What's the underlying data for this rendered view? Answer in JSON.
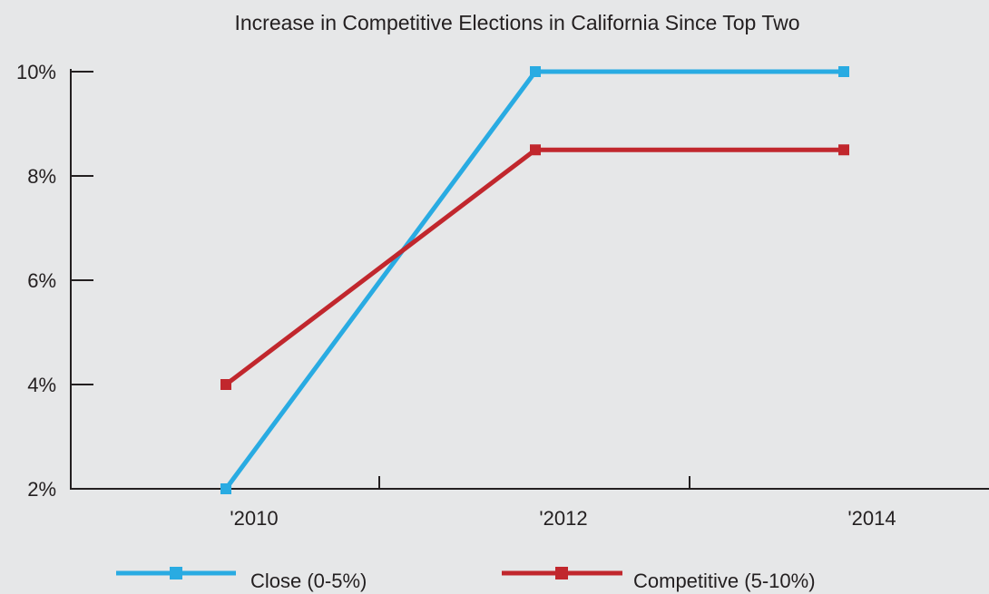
{
  "chart_data": {
    "type": "line",
    "title": "Increase in Competitive Elections in California Since Top Two",
    "xlabel": "",
    "ylabel": "",
    "x": [
      "'2010",
      "'2012",
      "'2014"
    ],
    "yticks": [
      "2%",
      "4%",
      "6%",
      "8%",
      "10%"
    ],
    "ylim": [
      2,
      10
    ],
    "grid": false,
    "legend_position": "bottom",
    "series": [
      {
        "name": "Close (0-5%)",
        "color": "#29abe2",
        "values": [
          2,
          10,
          10
        ]
      },
      {
        "name": "Competitive (5-10%)",
        "color": "#c1272d",
        "values": [
          4,
          8.5,
          8.5
        ]
      }
    ]
  }
}
